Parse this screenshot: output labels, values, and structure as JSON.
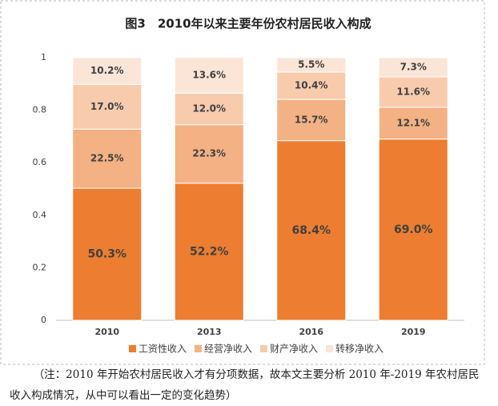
{
  "chart_data": {
    "type": "stacked_bar",
    "title": "图3　2010年以来主要年份农村居民收入构成",
    "categories": [
      "2010",
      "2013",
      "2016",
      "2019"
    ],
    "series": [
      {
        "name": "工资性收入",
        "color": "#ed7d31",
        "values": [
          0.503,
          0.522,
          0.684,
          0.69
        ],
        "value_labels": [
          "50.3%",
          "52.2%",
          "68.4%",
          "69.0%"
        ]
      },
      {
        "name": "经营净收入",
        "color": "#f4b183",
        "values": [
          0.225,
          0.223,
          0.157,
          0.121
        ],
        "value_labels": [
          "22.5%",
          "22.3%",
          "15.7%",
          "12.1%"
        ]
      },
      {
        "name": "财产净收入",
        "color": "#f8cbad",
        "values": [
          0.17,
          0.12,
          0.104,
          0.116
        ],
        "value_labels": [
          "17.0%",
          "12.0%",
          "10.4%",
          "11.6%"
        ]
      },
      {
        "name": "转移净收入",
        "color": "#fbe5d6",
        "values": [
          0.102,
          0.136,
          0.055,
          0.073
        ],
        "value_labels": [
          "10.2%",
          "13.6%",
          "5.5%",
          "7.3%"
        ]
      }
    ],
    "ylim": [
      0,
      1
    ],
    "yticks": [
      0,
      0.2,
      0.4,
      0.6,
      0.8,
      1
    ],
    "grid": false,
    "legend": "bottom",
    "note": "（注：2010 年开始农村居民收入才有分项数据，故本文主要分析 2010 年-2019 年农村居民收入构成情况，从中可以看出一定的变化趋势）"
  }
}
